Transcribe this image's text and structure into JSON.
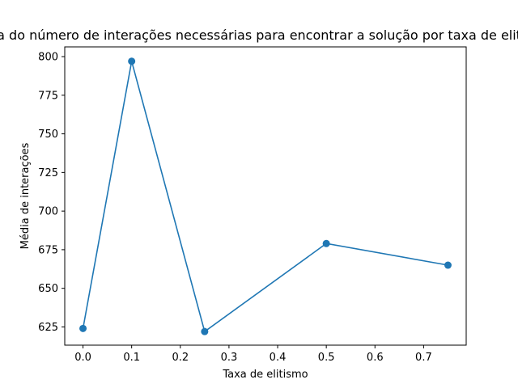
{
  "chart_data": {
    "type": "line",
    "title": "Média do número de interações necessárias para encontrar a solução por taxa de elitismo",
    "xlabel": "Taxa de elitismo",
    "ylabel": "Média de interações",
    "x": [
      0.0,
      0.1,
      0.25,
      0.5,
      0.75
    ],
    "series": [
      {
        "values": [
          624,
          797,
          622,
          679,
          665
        ]
      }
    ],
    "xlim": [
      -0.0375,
      0.7875
    ],
    "ylim": [
      613.2,
      806.3
    ],
    "xticks": [
      0.0,
      0.1,
      0.2,
      0.3,
      0.4,
      0.5,
      0.6,
      0.7
    ],
    "xtick_labels": [
      "0.0",
      "0.1",
      "0.2",
      "0.3",
      "0.4",
      "0.5",
      "0.6",
      "0.7"
    ],
    "yticks": [
      625,
      650,
      675,
      700,
      725,
      750,
      775,
      800
    ],
    "ytick_labels": [
      "625",
      "650",
      "675",
      "700",
      "725",
      "750",
      "775",
      "800"
    ],
    "grid": false,
    "legend": "none",
    "colors": {
      "line": "#1f77b4",
      "axes": "#000000",
      "background": "#ffffff"
    }
  }
}
